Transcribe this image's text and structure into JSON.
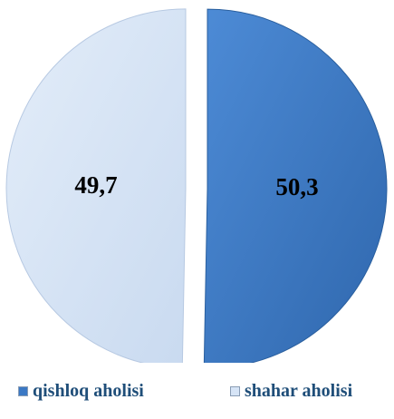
{
  "chart_data": {
    "type": "pie",
    "slices": [
      {
        "name": "qishloq aholisi",
        "value": 50.3,
        "label": "50,3",
        "color": "#3a78c4"
      },
      {
        "name": "shahar aholisi",
        "value": 49.7,
        "label": "49,7",
        "color": "#d6e4f6"
      }
    ],
    "legend_placement": "bottom",
    "exploded": true
  },
  "legend": {
    "items": [
      {
        "label": "qishloq aholisi",
        "color": "#3a78c4"
      },
      {
        "label": "shahar aholisi",
        "color": "#d6e4f6"
      }
    ]
  }
}
